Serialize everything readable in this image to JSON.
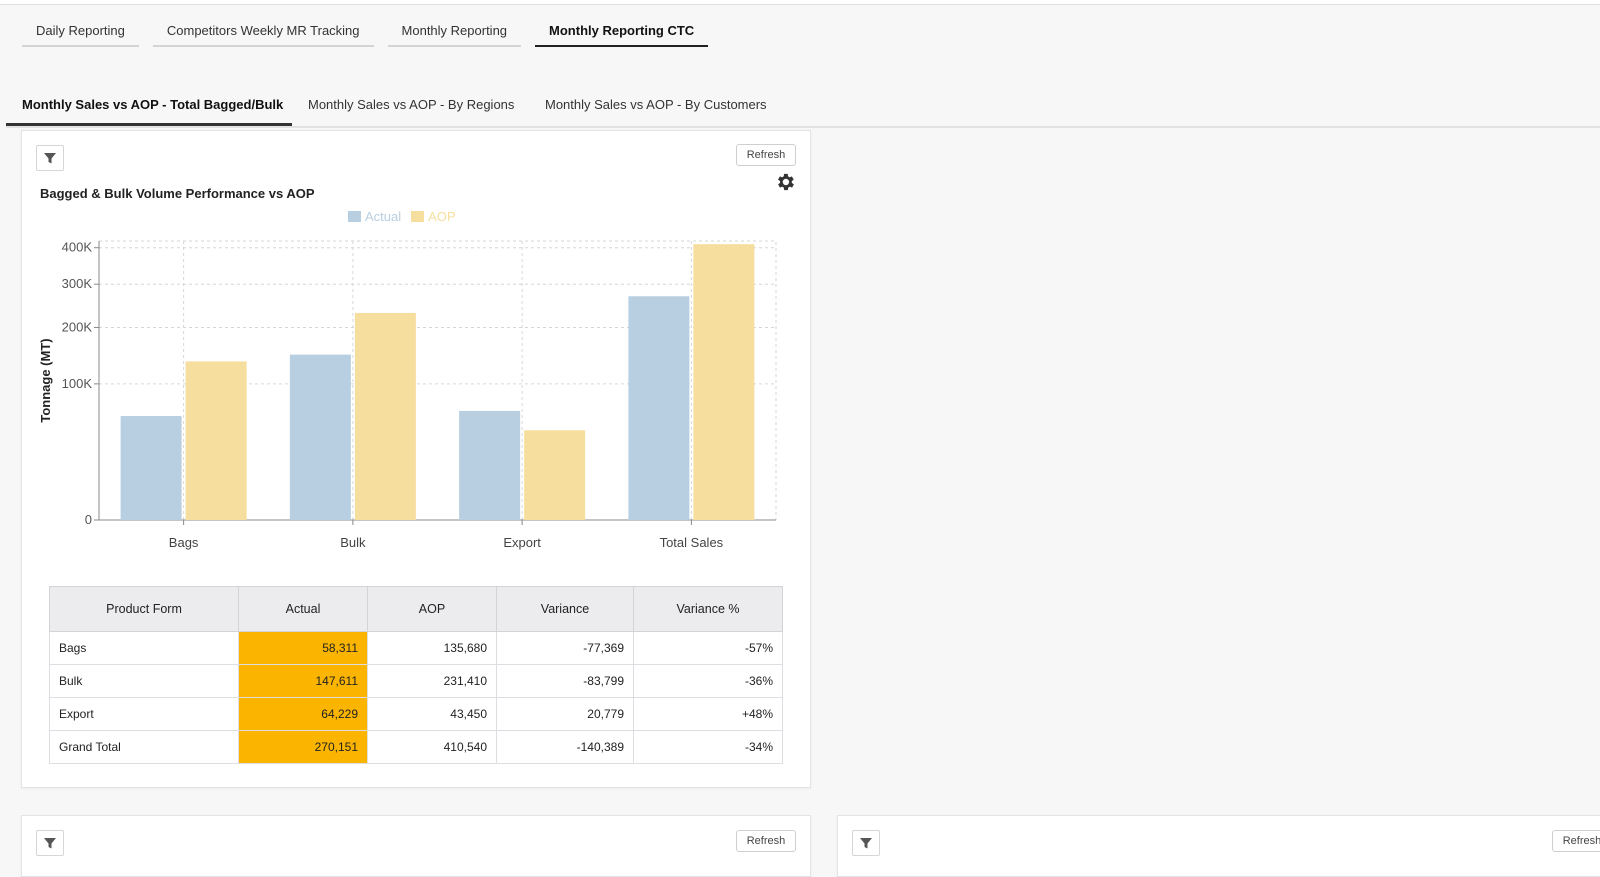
{
  "top_tabs": [
    {
      "label": "Daily Reporting",
      "active": false
    },
    {
      "label": "Competitors Weekly MR Tracking",
      "active": false
    },
    {
      "label": "Monthly Reporting",
      "active": false
    },
    {
      "label": "Monthly Reporting CTC",
      "active": true
    }
  ],
  "sub_tabs": [
    {
      "label": "Monthly Sales vs AOP - Total Bagged/Bulk",
      "active": true
    },
    {
      "label": "Monthly Sales vs AOP - By Regions",
      "active": false
    },
    {
      "label": "Monthly Sales vs AOP - By Customers",
      "active": false
    }
  ],
  "widget": {
    "refresh_label": "Refresh",
    "filter_icon": "filter-icon",
    "settings_icon": "gear-icon"
  },
  "chart_data": {
    "type": "bar",
    "title": "Bagged & Bulk Volume Performance vs AOP",
    "ylabel": "Tonnage (MT)",
    "xlabel": "",
    "categories": [
      "Bags",
      "Bulk",
      "Export",
      "Total Sales"
    ],
    "series": [
      {
        "name": "Actual",
        "values": [
          58311,
          147611,
          64229,
          270151
        ],
        "color": "#b8cfe1"
      },
      {
        "name": "AOP",
        "values": [
          135680,
          231410,
          43450,
          410540
        ],
        "color": "#f5de9e"
      }
    ],
    "y_ticks": [
      {
        "value": 0,
        "label": "0"
      },
      {
        "value": 100000,
        "label": "100K"
      },
      {
        "value": 200000,
        "label": "200K"
      },
      {
        "value": 300000,
        "label": "300K"
      },
      {
        "value": 400000,
        "label": "400K"
      }
    ],
    "y_scale": "sqrt",
    "ylim": [
      0,
      420000
    ],
    "grid": true,
    "legend_position": "top-center"
  },
  "table": {
    "headers": [
      "Product Form",
      "Actual",
      "AOP",
      "Variance",
      "Variance %"
    ],
    "rows": [
      {
        "form": "Bags",
        "actual": "58,311",
        "aop": "135,680",
        "variance": "-77,369",
        "variance_pct": "-57%",
        "sign": "neg"
      },
      {
        "form": "Bulk",
        "actual": "147,611",
        "aop": "231,410",
        "variance": "-83,799",
        "variance_pct": "-36%",
        "sign": "neg"
      },
      {
        "form": "Export",
        "actual": "64,229",
        "aop": "43,450",
        "variance": "20,779",
        "variance_pct": "+48%",
        "sign": "pos"
      },
      {
        "form": "Grand Total",
        "actual": "270,151",
        "aop": "410,540",
        "variance": "-140,389",
        "variance_pct": "-34%",
        "sign": "neg"
      }
    ],
    "highlight_color": "#fbb500"
  }
}
